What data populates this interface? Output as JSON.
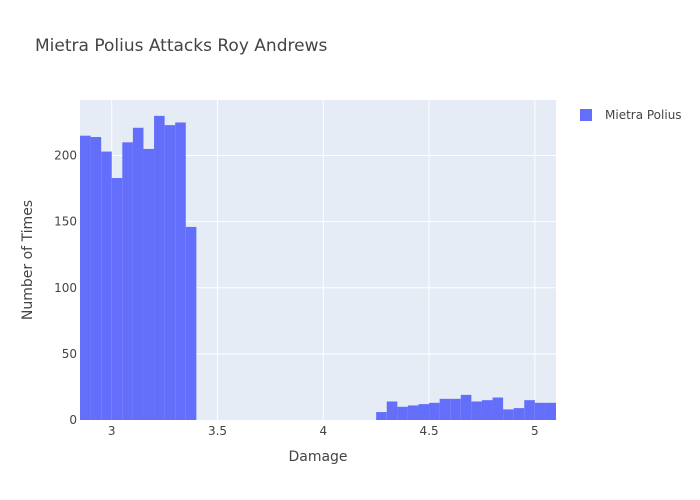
{
  "chart_data": {
    "type": "bar",
    "title": "Mietra Polius Attacks Roy Andrews",
    "xlabel": "Damage",
    "ylabel": "Number of Times",
    "xlim": [
      2.85,
      5.1
    ],
    "ylim": [
      0,
      242
    ],
    "bin_width": 0.05,
    "x_ticks": [
      3,
      3.5,
      4,
      4.5,
      5
    ],
    "x_tick_labels": [
      "3",
      "3.5",
      "4",
      "4.5",
      "5"
    ],
    "y_ticks": [
      0,
      50,
      100,
      150,
      200
    ],
    "y_tick_labels": [
      "0",
      "50",
      "100",
      "150",
      "200"
    ],
    "grid": true,
    "legend_position": "top-right",
    "colors": {
      "plot_bg": "#E5ECF6",
      "bar": "#636EFA",
      "grid": "#FFFFFF"
    },
    "series": [
      {
        "name": "Mietra Polius",
        "bins": [
          [
            2.85,
            215
          ],
          [
            2.9,
            214
          ],
          [
            2.95,
            203
          ],
          [
            3.0,
            183
          ],
          [
            3.05,
            210
          ],
          [
            3.1,
            221
          ],
          [
            3.15,
            205
          ],
          [
            3.2,
            230
          ],
          [
            3.25,
            223
          ],
          [
            3.3,
            225
          ],
          [
            3.35,
            146
          ],
          [
            4.25,
            6
          ],
          [
            4.3,
            14
          ],
          [
            4.35,
            10
          ],
          [
            4.4,
            11
          ],
          [
            4.45,
            12
          ],
          [
            4.5,
            13
          ],
          [
            4.55,
            16
          ],
          [
            4.6,
            16
          ],
          [
            4.65,
            19
          ],
          [
            4.7,
            14
          ],
          [
            4.75,
            15
          ],
          [
            4.8,
            17
          ],
          [
            4.85,
            8
          ],
          [
            4.9,
            9
          ],
          [
            4.95,
            15
          ],
          [
            5.0,
            13
          ],
          [
            5.05,
            13
          ]
        ]
      }
    ]
  }
}
